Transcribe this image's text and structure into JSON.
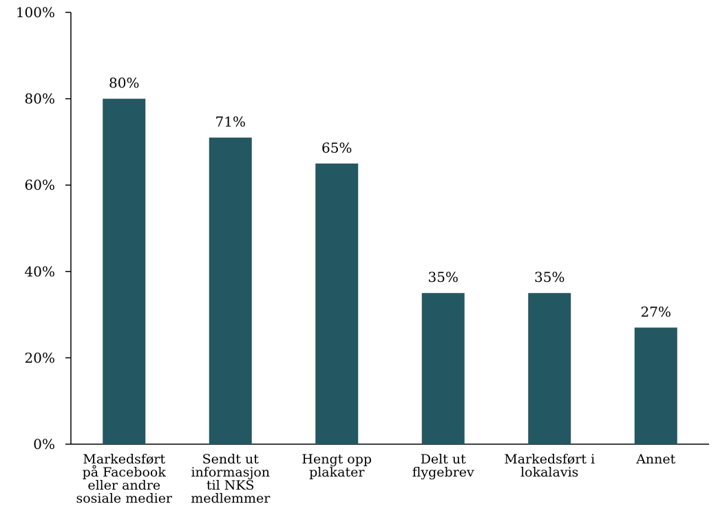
{
  "chart_data": {
    "type": "bar",
    "categories": [
      [
        "Markedsført",
        "på Facebook",
        "eller andre",
        "sosiale medier"
      ],
      [
        "Sendt ut",
        "informasjon",
        "til NKS",
        "medlemmer"
      ],
      [
        "Hengt opp",
        "plakater"
      ],
      [
        "Delt ut",
        "flygebrev"
      ],
      [
        "Markedsført i",
        "lokalavis"
      ],
      [
        "Annet"
      ]
    ],
    "values": [
      80,
      71,
      65,
      35,
      35,
      27
    ],
    "value_labels": [
      "80%",
      "71%",
      "65%",
      "35%",
      "35%",
      "27%"
    ],
    "ylim": [
      0,
      100
    ],
    "yticks": [
      0,
      20,
      40,
      60,
      80,
      100
    ],
    "ytick_labels": [
      "0%",
      "20%",
      "40%",
      "60%",
      "80%",
      "100%"
    ],
    "grid": false,
    "legend": "none",
    "bar_color": "#235761"
  }
}
